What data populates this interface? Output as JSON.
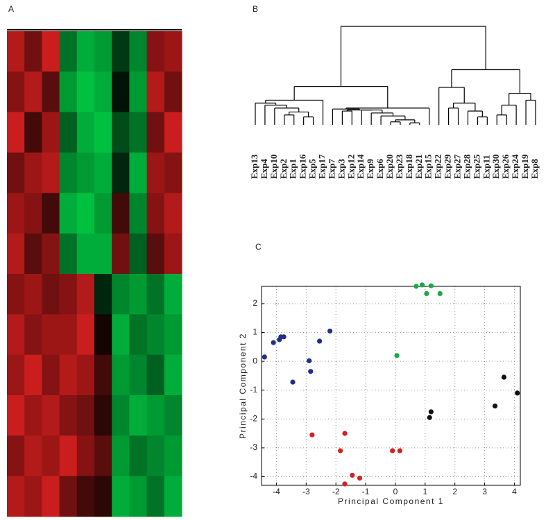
{
  "chart_data": [
    {
      "type": "heatmap",
      "label": "A",
      "vlim": [
        -1,
        1
      ],
      "low_color": "#00c040",
      "mid_color": "#000000",
      "high_color": "#e02020",
      "values": [
        [
          0.8,
          0.5,
          0.9,
          -0.6,
          -0.9,
          -0.8,
          -0.3,
          -0.7,
          0.6,
          0.7
        ],
        [
          0.6,
          0.8,
          0.4,
          -0.8,
          -1,
          -0.9,
          -0.1,
          -0.8,
          0.8,
          0.5
        ],
        [
          0.9,
          0.3,
          0.7,
          -0.5,
          -0.9,
          -1,
          -0.4,
          -0.6,
          0.5,
          0.9
        ],
        [
          0.5,
          0.7,
          0.8,
          -0.7,
          -0.8,
          -0.9,
          -0.2,
          -0.9,
          0.7,
          0.6
        ],
        [
          0.7,
          0.6,
          0.3,
          -0.9,
          -1,
          -0.8,
          0.3,
          -0.7,
          0.6,
          0.8
        ],
        [
          0.8,
          0.4,
          0.6,
          -0.6,
          -0.9,
          -0.9,
          0.5,
          -0.5,
          0.4,
          0.7
        ],
        [
          0.6,
          0.7,
          0.5,
          0.6,
          0.8,
          -0.2,
          -0.7,
          -0.8,
          -0.6,
          -0.9
        ],
        [
          0.8,
          0.6,
          0.7,
          0.7,
          0.9,
          0.1,
          -0.9,
          -0.6,
          -0.7,
          -0.8
        ],
        [
          0.7,
          0.9,
          0.6,
          0.8,
          0.7,
          0.3,
          -0.8,
          -0.7,
          -0.5,
          -0.9
        ],
        [
          0.9,
          0.7,
          0.8,
          0.6,
          0.5,
          0.2,
          -0.7,
          -0.9,
          -0.8,
          -0.7
        ],
        [
          0.6,
          0.8,
          0.7,
          0.9,
          0.6,
          0.4,
          -0.8,
          -0.6,
          -0.7,
          -0.8
        ],
        [
          0.8,
          0.7,
          0.9,
          0.5,
          0.3,
          0.2,
          -0.9,
          -0.8,
          -0.6,
          -0.9
        ]
      ]
    },
    {
      "type": "dendrogram",
      "label": "B",
      "leaves": [
        "Exp13",
        "Exp4",
        "Exp10",
        "Exp2",
        "Exp1",
        "Exp16",
        "Exp5",
        "Exp17",
        "Exp7",
        "Exp3",
        "Exp12",
        "Exp14",
        "Exp9",
        "Exp6",
        "Exp20",
        "Exp23",
        "Exp18",
        "Exp21",
        "Exp15",
        "Exp22",
        "Exp29",
        "Exp27",
        "Exp28",
        "Exp25",
        "Exp11",
        "Exp30",
        "Exp26",
        "Exp24",
        "Exp19",
        "Exp8"
      ],
      "tree": {
        "h": 100,
        "c": [
          {
            "h": 39,
            "c": [
              {
                "h": 25,
                "c": [
                  {
                    "h": 22,
                    "c": [
                      0,
                      {
                        "h": 20,
                        "c": [
                          1,
                          {
                            "h": 17,
                            "c": [
                              2,
                              {
                                "h": 13,
                                "c": [
                                  {
                                    "h": 10,
                                    "c": [
                                      3,
                                      4
                                    ]
                                  },
                                  {
                                    "h": 8,
                                    "c": [
                                      5,
                                      6
                                    ]
                                  }
                                ]
                              }
                            ]
                          }
                        ]
                      }
                    ]
                  },
                  7
                ]
              },
              {
                "h": 17,
                "c": [
                  {
                    "h": 16,
                    "c": [
                      8,
                      {
                        "h": 15,
                        "c": [
                          {
                            "h": 14,
                            "c": [
                              9,
                              10
                            ]
                          },
                          {
                            "h": 15,
                            "c": [
                              11,
                              {
                                "h": 12,
                                "c": [
                                  12,
                                  {
                                    "h": 9,
                                    "c": [
                                      13,
                                      {
                                        "h": 5,
                                        "c": [
                                          {
                                            "h": 3,
                                            "c": [
                                              14,
                                              15
                                            ]
                                          },
                                          {
                                            "h": 2,
                                            "c": [
                                              16,
                                              17
                                            ]
                                          }
                                        ]
                                      }
                                    ]
                                  }
                                ]
                              }
                            ]
                          }
                        ]
                      }
                    ]
                  },
                  18
                ]
              }
            ]
          },
          {
            "h": 56,
            "c": [
              {
                "h": 38,
                "c": [
                  19,
                  {
                    "h": 22,
                    "c": [
                      {
                        "h": 17,
                        "c": [
                          20,
                          21
                        ]
                      },
                      {
                        "h": 14,
                        "c": [
                          22,
                          {
                            "h": 8,
                            "c": [
                              23,
                              24
                            ]
                          }
                        ]
                      }
                    ]
                  }
                ]
              },
              {
                "h": 32,
                "c": [
                  {
                    "h": 20,
                    "c": [
                      {
                        "h": 10,
                        "c": [
                          25,
                          26
                        ]
                      },
                      27
                    ]
                  },
                  {
                    "h": 25,
                    "c": [
                      28,
                      29
                    ]
                  }
                ]
              }
            ]
          }
        ]
      }
    },
    {
      "type": "scatter",
      "label": "C",
      "x_label": "Principal Component 1",
      "y_label": "Principal Component 2",
      "xlim": [
        -4.5,
        4.2
      ],
      "ylim": [
        -4.3,
        2.6
      ],
      "xticks": [
        -4,
        -3,
        -2,
        -1,
        0,
        1,
        2,
        3,
        4
      ],
      "yticks": [
        -4,
        -3,
        -2,
        -1,
        0,
        1,
        2
      ],
      "grid": true,
      "series": [
        {
          "color": "#1f2f8f",
          "x": [
            -4.4,
            -4.1,
            -3.9,
            -3.85,
            -3.75,
            -3.45,
            -2.9,
            -2.85,
            -2.55,
            -2.2
          ],
          "y": [
            0.15,
            0.65,
            0.75,
            0.85,
            0.85,
            -0.72,
            0.02,
            -0.35,
            0.7,
            1.05
          ]
        },
        {
          "color": "#1aa84a",
          "x": [
            0.7,
            0.9,
            1.05,
            1.2,
            1.5,
            0.05
          ],
          "y": [
            2.6,
            2.65,
            2.35,
            2.62,
            2.35,
            0.2
          ]
        },
        {
          "color": "#111111",
          "x": [
            3.65,
            4.1,
            3.35,
            1.2,
            1.15
          ],
          "y": [
            -0.55,
            -1.1,
            -1.55,
            -1.75,
            -1.95
          ]
        },
        {
          "color": "#d42020",
          "x": [
            -2.8,
            -1.7,
            -1.85,
            -0.1,
            0.15,
            -1.45,
            -1.2,
            -1.7
          ],
          "y": [
            -2.55,
            -2.5,
            -3.1,
            -3.1,
            -3.1,
            -3.95,
            -4.05,
            -4.25
          ]
        }
      ]
    }
  ]
}
